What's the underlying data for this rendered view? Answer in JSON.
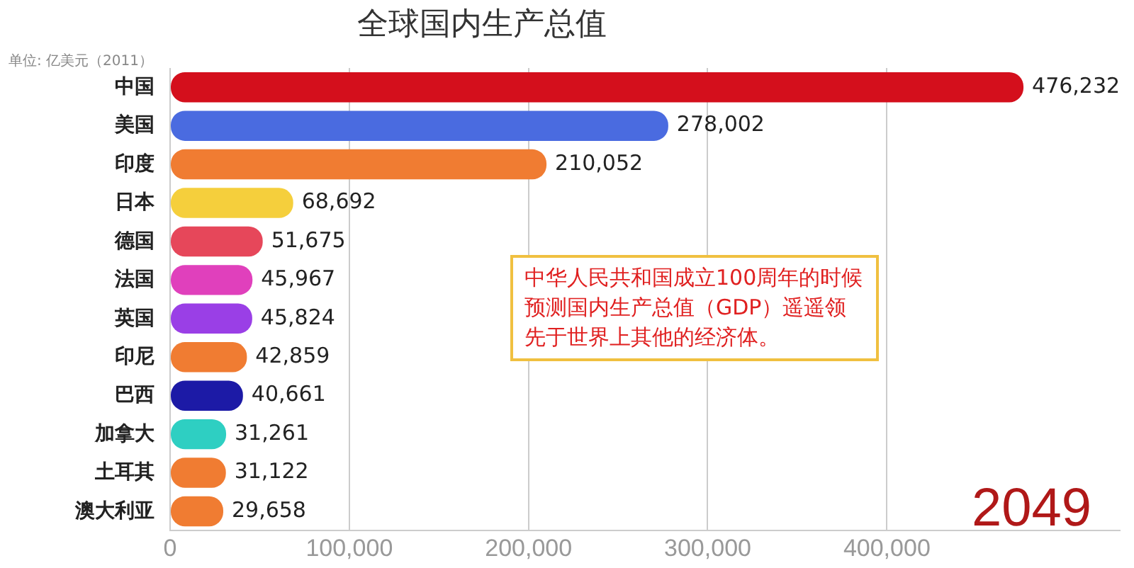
{
  "chart_data": {
    "type": "bar",
    "orientation": "horizontal",
    "title": "全球国内生产总值",
    "subtitle": "单位: 亿美元（2011）",
    "categories": [
      "中国",
      "美国",
      "印度",
      "日本",
      "德国",
      "法国",
      "英国",
      "印尼",
      "巴西",
      "加拿大",
      "土耳其",
      "澳大利亚"
    ],
    "values": [
      476232,
      278002,
      210052,
      68692,
      51675,
      45967,
      45824,
      42859,
      40661,
      31261,
      31122,
      29658
    ],
    "colors": [
      "#d40f1c",
      "#4a6be0",
      "#f07c32",
      "#f5cf3c",
      "#e6475a",
      "#e040bc",
      "#9a3fe6",
      "#f07c32",
      "#1c1aa6",
      "#2ecfc2",
      "#f07c32",
      "#f07c32"
    ],
    "value_labels": [
      "476,232",
      "278,002",
      "210,052",
      "68,692",
      "51,675",
      "45,967",
      "45,824",
      "42,859",
      "40,661",
      "31,261",
      "31,122",
      "29,658"
    ],
    "xlim": [
      0,
      530000
    ],
    "xticks": [
      0,
      {
        "value": 100000,
        "label": "100,000"
      },
      {
        "value": 200000,
        "label": "200,000"
      },
      {
        "value": 300000,
        "label": "300,000"
      },
      {
        "value": 400000,
        "label": "400,000"
      }
    ],
    "grid": "x",
    "legend": false,
    "annotations": [
      "中华人民共和国成立100周年的时候预测国内生产总值（GDP）遥遥领先于世界上其他的经济体。",
      "2049"
    ]
  }
}
